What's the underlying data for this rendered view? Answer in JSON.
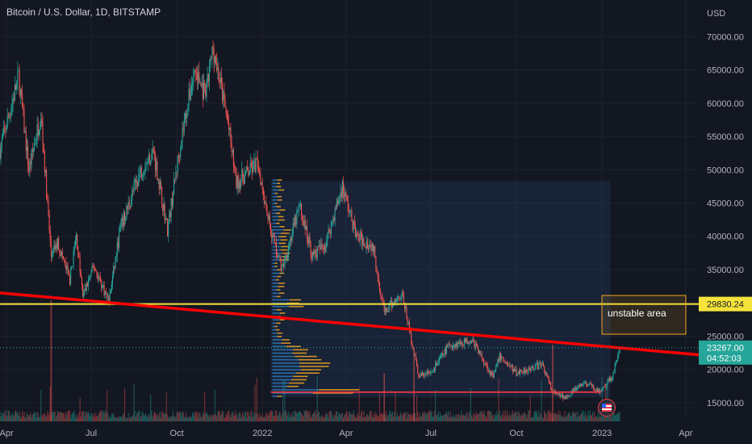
{
  "header": {
    "title": "Bitcoin / U.S. Dollar, 1D, BITSTAMP"
  },
  "axis": {
    "currency": "USD"
  },
  "colors": {
    "background": "#131722",
    "up": "#26a69a",
    "down": "#ef5350",
    "support_line": "#f5e33b",
    "trendline": "#ff0000",
    "baseline": "#f23645",
    "last_price": "#26a69a",
    "profile_buy": "#2e7ab8",
    "profile_sell": "#f5a623",
    "annotation": "#f5a623"
  },
  "chart_data": {
    "type": "candlestick",
    "symbol": "BTCUSD",
    "exchange": "BITSTAMP",
    "interval": "1D",
    "xlim": [
      "2021-03-25",
      "2023-04-15"
    ],
    "ylim": [
      12200,
      75500
    ],
    "x_ticks": [
      {
        "label": "Apr",
        "date": "2021-04-01"
      },
      {
        "label": "Jul",
        "date": "2021-07-01"
      },
      {
        "label": "Oct",
        "date": "2021-10-01"
      },
      {
        "label": "2022",
        "date": "2022-01-01"
      },
      {
        "label": "Apr",
        "date": "2022-04-01"
      },
      {
        "label": "Jul",
        "date": "2022-07-01"
      },
      {
        "label": "Oct",
        "date": "2022-10-01"
      },
      {
        "label": "2023",
        "date": "2023-01-01"
      },
      {
        "label": "Apr",
        "date": "2023-04-01"
      }
    ],
    "y_ticks": [
      {
        "label": "15000.00",
        "value": 15000
      },
      {
        "label": "20000.00",
        "value": 20000
      },
      {
        "label": "25000.00",
        "value": 25000
      },
      {
        "label": "30000.00",
        "value": 30000
      },
      {
        "label": "35000.00",
        "value": 35000
      },
      {
        "label": "40000.00",
        "value": 40000
      },
      {
        "label": "45000.00",
        "value": 45000
      },
      {
        "label": "50000.00",
        "value": 50000
      },
      {
        "label": "55000.00",
        "value": 55000
      },
      {
        "label": "60000.00",
        "value": 60000
      },
      {
        "label": "65000.00",
        "value": 65000
      },
      {
        "label": "70000.00",
        "value": 70000
      }
    ],
    "price_path": [
      [
        "2021-03-25",
        53000
      ],
      [
        "2021-04-05",
        59000
      ],
      [
        "2021-04-14",
        64000
      ],
      [
        "2021-04-25",
        50000
      ],
      [
        "2021-05-08",
        58500
      ],
      [
        "2021-05-19",
        37000
      ],
      [
        "2021-05-26",
        39000
      ],
      [
        "2021-06-08",
        33500
      ],
      [
        "2021-06-15",
        40000
      ],
      [
        "2021-06-22",
        31000
      ],
      [
        "2021-07-04",
        35500
      ],
      [
        "2021-07-20",
        30200
      ],
      [
        "2021-08-01",
        41000
      ],
      [
        "2021-08-22",
        49500
      ],
      [
        "2021-09-06",
        52800
      ],
      [
        "2021-09-21",
        41000
      ],
      [
        "2021-10-06",
        55000
      ],
      [
        "2021-10-20",
        65000
      ],
      [
        "2021-11-01",
        61000
      ],
      [
        "2021-11-09",
        68500
      ],
      [
        "2021-11-25",
        57000
      ],
      [
        "2021-12-04",
        48000
      ],
      [
        "2021-12-27",
        51000
      ],
      [
        "2022-01-10",
        41000
      ],
      [
        "2022-01-22",
        35000
      ],
      [
        "2022-02-10",
        44500
      ],
      [
        "2022-02-24",
        37000
      ],
      [
        "2022-03-10",
        39000
      ],
      [
        "2022-03-28",
        47500
      ],
      [
        "2022-04-12",
        40000
      ],
      [
        "2022-04-30",
        38500
      ],
      [
        "2022-05-12",
        28500
      ],
      [
        "2022-05-31",
        31500
      ],
      [
        "2022-06-13",
        22500
      ],
      [
        "2022-06-18",
        19000
      ],
      [
        "2022-07-01",
        19500
      ],
      [
        "2022-07-20",
        23500
      ],
      [
        "2022-08-14",
        24500
      ],
      [
        "2022-09-06",
        18800
      ],
      [
        "2022-09-13",
        22000
      ],
      [
        "2022-10-01",
        19500
      ],
      [
        "2022-10-29",
        20800
      ],
      [
        "2022-11-09",
        16500
      ],
      [
        "2022-11-21",
        15800
      ],
      [
        "2022-12-14",
        18000
      ],
      [
        "2022-12-31",
        16500
      ],
      [
        "2023-01-12",
        19000
      ],
      [
        "2023-01-20",
        23267
      ]
    ],
    "overlays": {
      "support_level": {
        "price": 29830.24,
        "label": "29830.24"
      },
      "trendline": {
        "from": [
          "2021-03-25",
          31500
        ],
        "to": [
          "2023-04-15",
          22200
        ]
      },
      "baseline": {
        "from": [
          "2022-01-10",
          16600
        ],
        "to": [
          "2022-12-31",
          16600
        ]
      },
      "range_box": {
        "from_date": "2022-01-10",
        "to_date": "2023-01-10",
        "top": 48300,
        "bottom": 15800
      }
    },
    "last_price": {
      "value": 23267.0,
      "label": "23267.00",
      "countdown": "04:52:03"
    },
    "annotation": {
      "text": "unstable area"
    }
  }
}
